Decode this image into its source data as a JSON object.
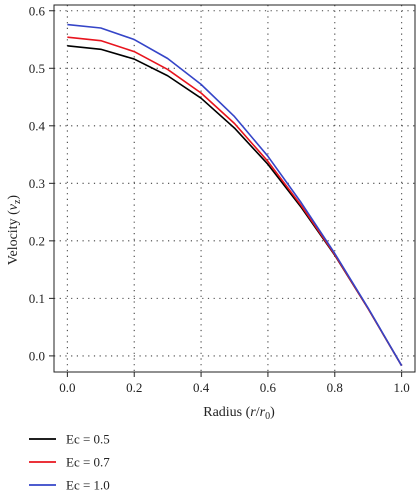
{
  "chart_data": {
    "type": "line",
    "xlabel_main": "Radius (",
    "xlabel_r": "r",
    "xlabel_slash": "/",
    "xlabel_r0": "r",
    "xlabel_r0_sub": "0",
    "xlabel_close": ")",
    "ylabel_main": "Velocity (",
    "ylabel_v": "v",
    "ylabel_sub": "z",
    "ylabel_close": ")",
    "x_ticks": [
      "0.0",
      "0.2",
      "0.4",
      "0.6",
      "0.8",
      "1.0"
    ],
    "y_ticks": [
      "0.0",
      "0.1",
      "0.2",
      "0.3",
      "0.4",
      "0.5",
      "0.6"
    ],
    "xlim": [
      -0.04,
      1.04
    ],
    "ylim": [
      -0.028,
      0.61
    ],
    "grid": true,
    "legend_position": "below plot, left",
    "x": [
      0.0,
      0.1,
      0.2,
      0.3,
      0.4,
      0.5,
      0.6,
      0.7,
      0.8,
      0.9,
      1.0
    ],
    "series": [
      {
        "name": "Ec = 0.5",
        "color": "#000000",
        "values": [
          0.539,
          0.533,
          0.516,
          0.487,
          0.448,
          0.396,
          0.333,
          0.258,
          0.175,
          0.082,
          -0.017
        ]
      },
      {
        "name": "Ec = 0.7",
        "color": "#e8141e",
        "values": [
          0.554,
          0.548,
          0.529,
          0.498,
          0.457,
          0.404,
          0.338,
          0.261,
          0.176,
          0.082,
          -0.017
        ]
      },
      {
        "name": "Ec = 1.0",
        "color": "#3545c8",
        "values": [
          0.576,
          0.57,
          0.55,
          0.517,
          0.472,
          0.416,
          0.347,
          0.266,
          0.178,
          0.083,
          -0.017
        ]
      }
    ]
  }
}
